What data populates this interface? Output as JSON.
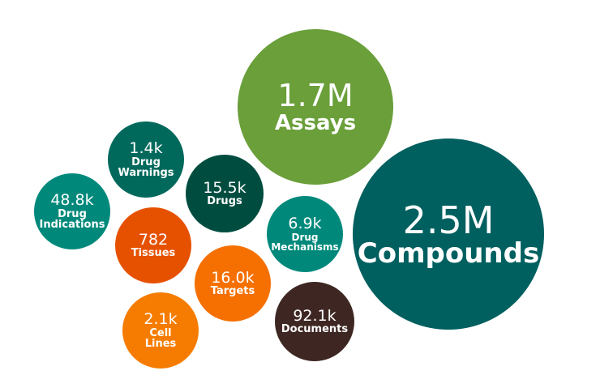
{
  "bubbles": [
    {
      "id": "assays",
      "value": "1.7M",
      "label": "Assays",
      "color": "#6a9f3a"
    },
    {
      "id": "compounds",
      "value": "2.5M",
      "label": "Compounds",
      "color": "#005f5f"
    },
    {
      "id": "drug-warnings",
      "value": "1.4k",
      "label": "Drug\nWarnings",
      "color": "#00695c"
    },
    {
      "id": "drugs",
      "value": "15.5k",
      "label": "Drugs",
      "color": "#004d40"
    },
    {
      "id": "drug-indications",
      "value": "48.8k",
      "label": "Drug\nIndications",
      "color": "#00897b"
    },
    {
      "id": "tissues",
      "value": "782",
      "label": "Tissues",
      "color": "#e65100"
    },
    {
      "id": "drug-mechanisms",
      "value": "6.9k",
      "label": "Drug\nMechanisms",
      "color": "#00897b"
    },
    {
      "id": "targets",
      "value": "16.0k",
      "label": "Targets",
      "color": "#f57000"
    },
    {
      "id": "cell-lines",
      "value": "2.1k",
      "label": "Cell\nLines",
      "color": "#f57c00"
    },
    {
      "id": "documents",
      "value": "92.1k",
      "label": "Documents",
      "color": "#3e2723"
    }
  ]
}
